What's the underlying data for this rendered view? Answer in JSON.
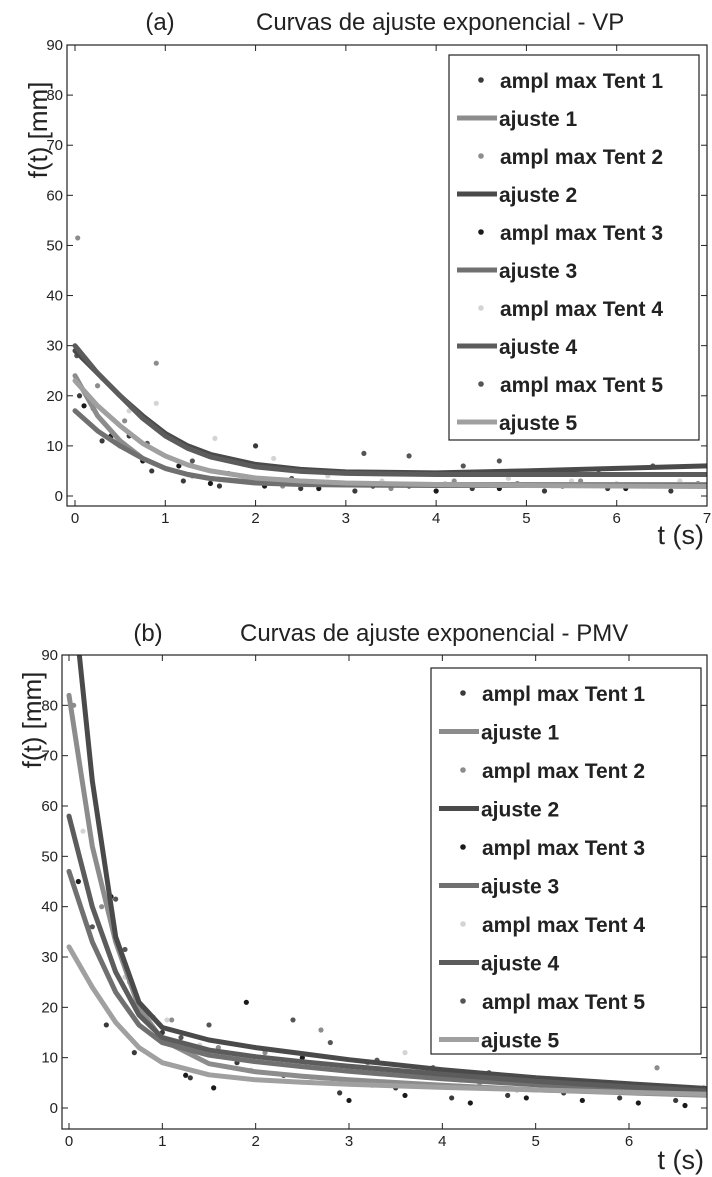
{
  "chart_data": [
    {
      "type": "scatter",
      "panel_label": "(a)",
      "title": "Curvas de ajuste exponencial - VP",
      "xlabel": "t (s)",
      "ylabel": "f(t) [mm]",
      "xlim": [
        0,
        7
      ],
      "ylim": [
        -2,
        90
      ],
      "xticks": [
        0,
        1,
        2,
        3,
        4,
        5,
        6,
        7
      ],
      "yticks": [
        0,
        10,
        20,
        30,
        40,
        50,
        60,
        70,
        80,
        90
      ],
      "grid": false,
      "legend_position": "top-right",
      "legend": [
        {
          "label": "ampl max Tent 1",
          "kind": "marker",
          "color": "#3a3a3a"
        },
        {
          "label": "ajuste 1",
          "kind": "line",
          "color": "#8c8c8c"
        },
        {
          "label": "ampl max Tent 2",
          "kind": "marker",
          "color": "#8c8c8c"
        },
        {
          "label": "ajuste 2",
          "kind": "line",
          "color": "#4a4a4a"
        },
        {
          "label": "ampl max Tent 3",
          "kind": "marker",
          "color": "#1a1a1a"
        },
        {
          "label": "ajuste 3",
          "kind": "line",
          "color": "#707070"
        },
        {
          "label": "ampl max Tent 4",
          "kind": "marker",
          "color": "#d4d4d4"
        },
        {
          "label": "ajuste 4",
          "kind": "line",
          "color": "#5c5c5c"
        },
        {
          "label": "ampl max Tent 5",
          "kind": "marker",
          "color": "#555555"
        },
        {
          "label": "ajuste 5",
          "kind": "line",
          "color": "#a0a0a0"
        }
      ],
      "fits": [
        {
          "name": "ajuste 1",
          "color": "#8c8c8c",
          "x": [
            0,
            0.25,
            0.5,
            0.75,
            1,
            1.25,
            1.5,
            2,
            2.5,
            3,
            4,
            5,
            6,
            7
          ],
          "y": [
            24,
            16,
            11,
            7.5,
            5.5,
            4.3,
            3.5,
            2.8,
            2.5,
            2.4,
            2.3,
            2.3,
            2.3,
            2.3
          ]
        },
        {
          "name": "ajuste 2",
          "color": "#4a4a4a",
          "x": [
            0,
            0.25,
            0.5,
            0.75,
            1,
            1.25,
            1.5,
            2,
            2.5,
            3,
            4,
            5,
            6,
            7
          ],
          "y": [
            29,
            24.5,
            20,
            16,
            12.5,
            10,
            8.3,
            6.3,
            5.3,
            4.8,
            4.6,
            5,
            5.5,
            6
          ]
        },
        {
          "name": "ajuste 3",
          "color": "#707070",
          "x": [
            0,
            0.25,
            0.5,
            0.75,
            1,
            1.25,
            1.5,
            2,
            2.5,
            3,
            4,
            5,
            6,
            7
          ],
          "y": [
            17,
            13,
            10,
            7.5,
            5.5,
            4.3,
            3.5,
            2.6,
            2.3,
            2.2,
            2.1,
            2.1,
            2.1,
            2.1
          ]
        },
        {
          "name": "ajuste 4",
          "color": "#5c5c5c",
          "x": [
            0,
            0.25,
            0.5,
            0.75,
            1,
            1.25,
            1.5,
            2,
            2.5,
            3,
            4,
            5,
            6,
            7
          ],
          "y": [
            30,
            24.5,
            20,
            15.5,
            12,
            9.5,
            7.8,
            5.8,
            4.9,
            4.5,
            4.3,
            4.3,
            4.3,
            4.3
          ]
        },
        {
          "name": "ajuste 5",
          "color": "#a0a0a0",
          "x": [
            0,
            0.25,
            0.5,
            0.75,
            1,
            1.25,
            1.5,
            2,
            2.5,
            3,
            4,
            5,
            6,
            7
          ],
          "y": [
            23,
            18,
            14,
            10.5,
            8,
            6.2,
            5,
            3.6,
            3,
            2.6,
            2.3,
            2.1,
            2,
            1.9
          ]
        }
      ],
      "scatter": [
        {
          "name": "ampl max Tent 1",
          "color": "#3a3a3a",
          "points": [
            [
              0.05,
              20
            ],
            [
              0.3,
              11
            ],
            [
              0.6,
              12
            ],
            [
              0.85,
              5
            ],
            [
              1.2,
              3
            ],
            [
              1.6,
              2
            ],
            [
              2.0,
              10
            ],
            [
              2.5,
              1.5
            ],
            [
              3.1,
              1
            ],
            [
              3.7,
              2
            ],
            [
              4.4,
              1.5
            ],
            [
              5.2,
              1
            ],
            [
              5.9,
              1.5
            ],
            [
              6.6,
              1
            ]
          ]
        },
        {
          "name": "ampl max Tent 2",
          "color": "#8c8c8c",
          "points": [
            [
              0.03,
              51.5
            ],
            [
              0.25,
              22
            ],
            [
              0.55,
              15
            ],
            [
              0.9,
              26.5
            ],
            [
              1.3,
              4
            ],
            [
              1.8,
              3
            ],
            [
              2.3,
              2
            ],
            [
              2.9,
              2.5
            ],
            [
              3.5,
              1.5
            ],
            [
              4.2,
              3
            ],
            [
              4.9,
              2.5
            ],
            [
              5.6,
              3
            ],
            [
              6.3,
              2
            ],
            [
              6.9,
              2.5
            ]
          ]
        },
        {
          "name": "ampl max Tent 3",
          "color": "#1a1a1a",
          "points": [
            [
              0.1,
              18
            ],
            [
              0.4,
              12
            ],
            [
              0.75,
              7
            ],
            [
              0.9,
              13.5
            ],
            [
              1.15,
              6
            ],
            [
              1.5,
              2.5
            ],
            [
              2.1,
              2
            ],
            [
              2.7,
              1.5
            ],
            [
              3.3,
              2
            ],
            [
              4.0,
              1
            ],
            [
              4.7,
              1.5
            ],
            [
              5.4,
              2
            ],
            [
              6.1,
              1.5
            ],
            [
              6.8,
              2
            ]
          ]
        },
        {
          "name": "ampl max Tent 4",
          "color": "#d4d4d4",
          "points": [
            [
              0.3,
              23.5
            ],
            [
              0.6,
              17
            ],
            [
              0.9,
              18.5
            ],
            [
              1.55,
              11.5
            ],
            [
              2.2,
              7.5
            ],
            [
              2.8,
              4
            ],
            [
              3.4,
              3
            ],
            [
              4.1,
              2.5
            ],
            [
              4.8,
              3.5
            ],
            [
              5.5,
              3
            ],
            [
              6.0,
              2.5
            ],
            [
              6.7,
              3
            ]
          ]
        },
        {
          "name": "ampl max Tent 5",
          "color": "#555555",
          "points": [
            [
              0.02,
              28
            ],
            [
              0.2,
              17.5
            ],
            [
              0.5,
              10
            ],
            [
              0.8,
              10.5
            ],
            [
              1.3,
              7
            ],
            [
              1.7,
              4.5
            ],
            [
              2.4,
              3.5
            ],
            [
              3.2,
              8.5
            ],
            [
              3.7,
              8
            ],
            [
              4.3,
              6
            ],
            [
              4.7,
              7
            ],
            [
              5.1,
              5
            ],
            [
              5.8,
              4.5
            ],
            [
              6.4,
              6
            ]
          ]
        }
      ]
    },
    {
      "type": "scatter",
      "panel_label": "(b)",
      "title": "Curvas de ajuste exponencial - PMV",
      "xlabel": "t (s)",
      "ylabel": "f(t) [mm]",
      "xlim": [
        0,
        6.9
      ],
      "ylim": [
        -3,
        90
      ],
      "xticks": [
        0,
        1,
        2,
        3,
        4,
        5,
        6
      ],
      "yticks": [
        0,
        10,
        20,
        30,
        40,
        50,
        60,
        70,
        80,
        90
      ],
      "grid": false,
      "legend_position": "top-right",
      "legend": [
        {
          "label": "ampl max Tent 1",
          "kind": "marker",
          "color": "#3a3a3a"
        },
        {
          "label": "ajuste 1",
          "kind": "line",
          "color": "#8c8c8c"
        },
        {
          "label": "ampl max Tent 2",
          "kind": "marker",
          "color": "#8c8c8c"
        },
        {
          "label": "ajuste 2",
          "kind": "line",
          "color": "#4a4a4a"
        },
        {
          "label": "ampl max Tent 3",
          "kind": "marker",
          "color": "#1a1a1a"
        },
        {
          "label": "ajuste 3",
          "kind": "line",
          "color": "#707070"
        },
        {
          "label": "ampl max Tent 4",
          "kind": "marker",
          "color": "#d4d4d4"
        },
        {
          "label": "ajuste 4",
          "kind": "line",
          "color": "#5c5c5c"
        },
        {
          "label": "ampl max Tent 5",
          "kind": "marker",
          "color": "#555555"
        },
        {
          "label": "ajuste 5",
          "kind": "line",
          "color": "#a0a0a0"
        }
      ],
      "fits": [
        {
          "name": "ajuste 1",
          "color": "#8c8c8c",
          "x": [
            0,
            0.25,
            0.5,
            0.75,
            1,
            1.5,
            2,
            2.5,
            3,
            4,
            5,
            6,
            6.9
          ],
          "y": [
            82,
            52,
            33,
            20,
            13.5,
            8.8,
            7.2,
            6.3,
            5.6,
            4.5,
            3.6,
            3,
            2.5
          ]
        },
        {
          "name": "ajuste 2",
          "color": "#4a4a4a",
          "x": [
            0.1,
            0.25,
            0.5,
            0.75,
            1,
            1.5,
            2,
            2.5,
            3,
            4,
            5,
            6,
            6.9
          ],
          "y": [
            92,
            65,
            34,
            21,
            16,
            13.5,
            12,
            10.8,
            9.6,
            7.6,
            6,
            4.8,
            3.8
          ]
        },
        {
          "name": "ajuste 3",
          "color": "#707070",
          "x": [
            0,
            0.25,
            0.5,
            0.75,
            1,
            1.5,
            2,
            2.5,
            3,
            4,
            5,
            6,
            6.9
          ],
          "y": [
            47,
            33,
            23,
            16.5,
            13,
            10.5,
            9.2,
            8.2,
            7.3,
            5.8,
            4.6,
            3.6,
            2.9
          ]
        },
        {
          "name": "ajuste 4",
          "color": "#5c5c5c",
          "x": [
            0,
            0.25,
            0.5,
            0.75,
            1,
            1.5,
            2,
            2.5,
            3,
            4,
            5,
            6,
            6.9
          ],
          "y": [
            58,
            40,
            27,
            18.5,
            14,
            11.5,
            10.2,
            9.2,
            8.3,
            6.7,
            5.3,
            4.2,
            3.3
          ]
        },
        {
          "name": "ajuste 5",
          "color": "#a0a0a0",
          "x": [
            0,
            0.25,
            0.5,
            0.75,
            1,
            1.5,
            2,
            2.5,
            3,
            4,
            5,
            6,
            6.9
          ],
          "y": [
            32,
            24,
            17,
            12,
            9,
            6.6,
            5.6,
            5.1,
            4.7,
            4.1,
            3.6,
            3.1,
            2.7
          ]
        }
      ],
      "scatter": [
        {
          "name": "ampl max Tent 1",
          "color": "#3a3a3a",
          "points": [
            [
              0.2,
              36
            ],
            [
              0.4,
              16.5
            ],
            [
              0.7,
              11
            ],
            [
              1.0,
              15
            ],
            [
              1.3,
              6
            ],
            [
              1.8,
              9
            ],
            [
              2.3,
              6.5
            ],
            [
              2.9,
              3
            ],
            [
              3.5,
              4
            ],
            [
              4.1,
              2
            ],
            [
              4.7,
              2.5
            ],
            [
              5.3,
              3
            ],
            [
              5.9,
              2
            ],
            [
              6.5,
              1.5
            ]
          ]
        },
        {
          "name": "ampl max Tent 2",
          "color": "#8c8c8c",
          "points": [
            [
              0.05,
              80
            ],
            [
              0.35,
              40
            ],
            [
              0.65,
              25
            ],
            [
              1.1,
              17.5
            ],
            [
              1.6,
              12
            ],
            [
              2.1,
              11
            ],
            [
              2.7,
              15.5
            ],
            [
              3.2,
              9
            ],
            [
              3.8,
              7
            ],
            [
              4.4,
              5
            ],
            [
              5.0,
              6
            ],
            [
              5.6,
              4.5
            ],
            [
              6.3,
              8
            ],
            [
              6.8,
              4
            ]
          ]
        },
        {
          "name": "ampl max Tent 3",
          "color": "#1a1a1a",
          "points": [
            [
              0.1,
              45
            ],
            [
              0.45,
              42
            ],
            [
              0.9,
              18
            ],
            [
              1.25,
              6.5
            ],
            [
              1.55,
              4
            ],
            [
              1.9,
              21
            ],
            [
              2.5,
              10
            ],
            [
              3.0,
              1.5
            ],
            [
              3.6,
              2.5
            ],
            [
              4.3,
              1
            ],
            [
              4.9,
              2
            ],
            [
              5.5,
              1.5
            ],
            [
              6.1,
              1
            ],
            [
              6.6,
              0.5
            ]
          ]
        },
        {
          "name": "ampl max Tent 4",
          "color": "#d4d4d4",
          "points": [
            [
              0.15,
              55
            ],
            [
              0.6,
              26
            ],
            [
              1.05,
              17.5
            ],
            [
              1.4,
              12.5
            ],
            [
              1.95,
              7.5
            ],
            [
              2.6,
              6
            ],
            [
              3.25,
              4.5
            ],
            [
              3.6,
              11
            ],
            [
              4.2,
              5.5
            ],
            [
              4.8,
              3.5
            ],
            [
              5.4,
              5
            ],
            [
              6.0,
              3.5
            ],
            [
              6.7,
              3
            ]
          ]
        },
        {
          "name": "ampl max Tent 5",
          "color": "#555555",
          "points": [
            [
              0.25,
              36
            ],
            [
              0.5,
              41.5
            ],
            [
              0.6,
              31.5
            ],
            [
              1.2,
              14
            ],
            [
              1.5,
              16.5
            ],
            [
              2.4,
              17.5
            ],
            [
              2.8,
              13
            ],
            [
              3.3,
              9.5
            ],
            [
              3.9,
              8
            ],
            [
              4.5,
              7
            ],
            [
              5.2,
              5
            ],
            [
              5.8,
              4.5
            ],
            [
              6.4,
              3.5
            ]
          ]
        }
      ]
    }
  ]
}
